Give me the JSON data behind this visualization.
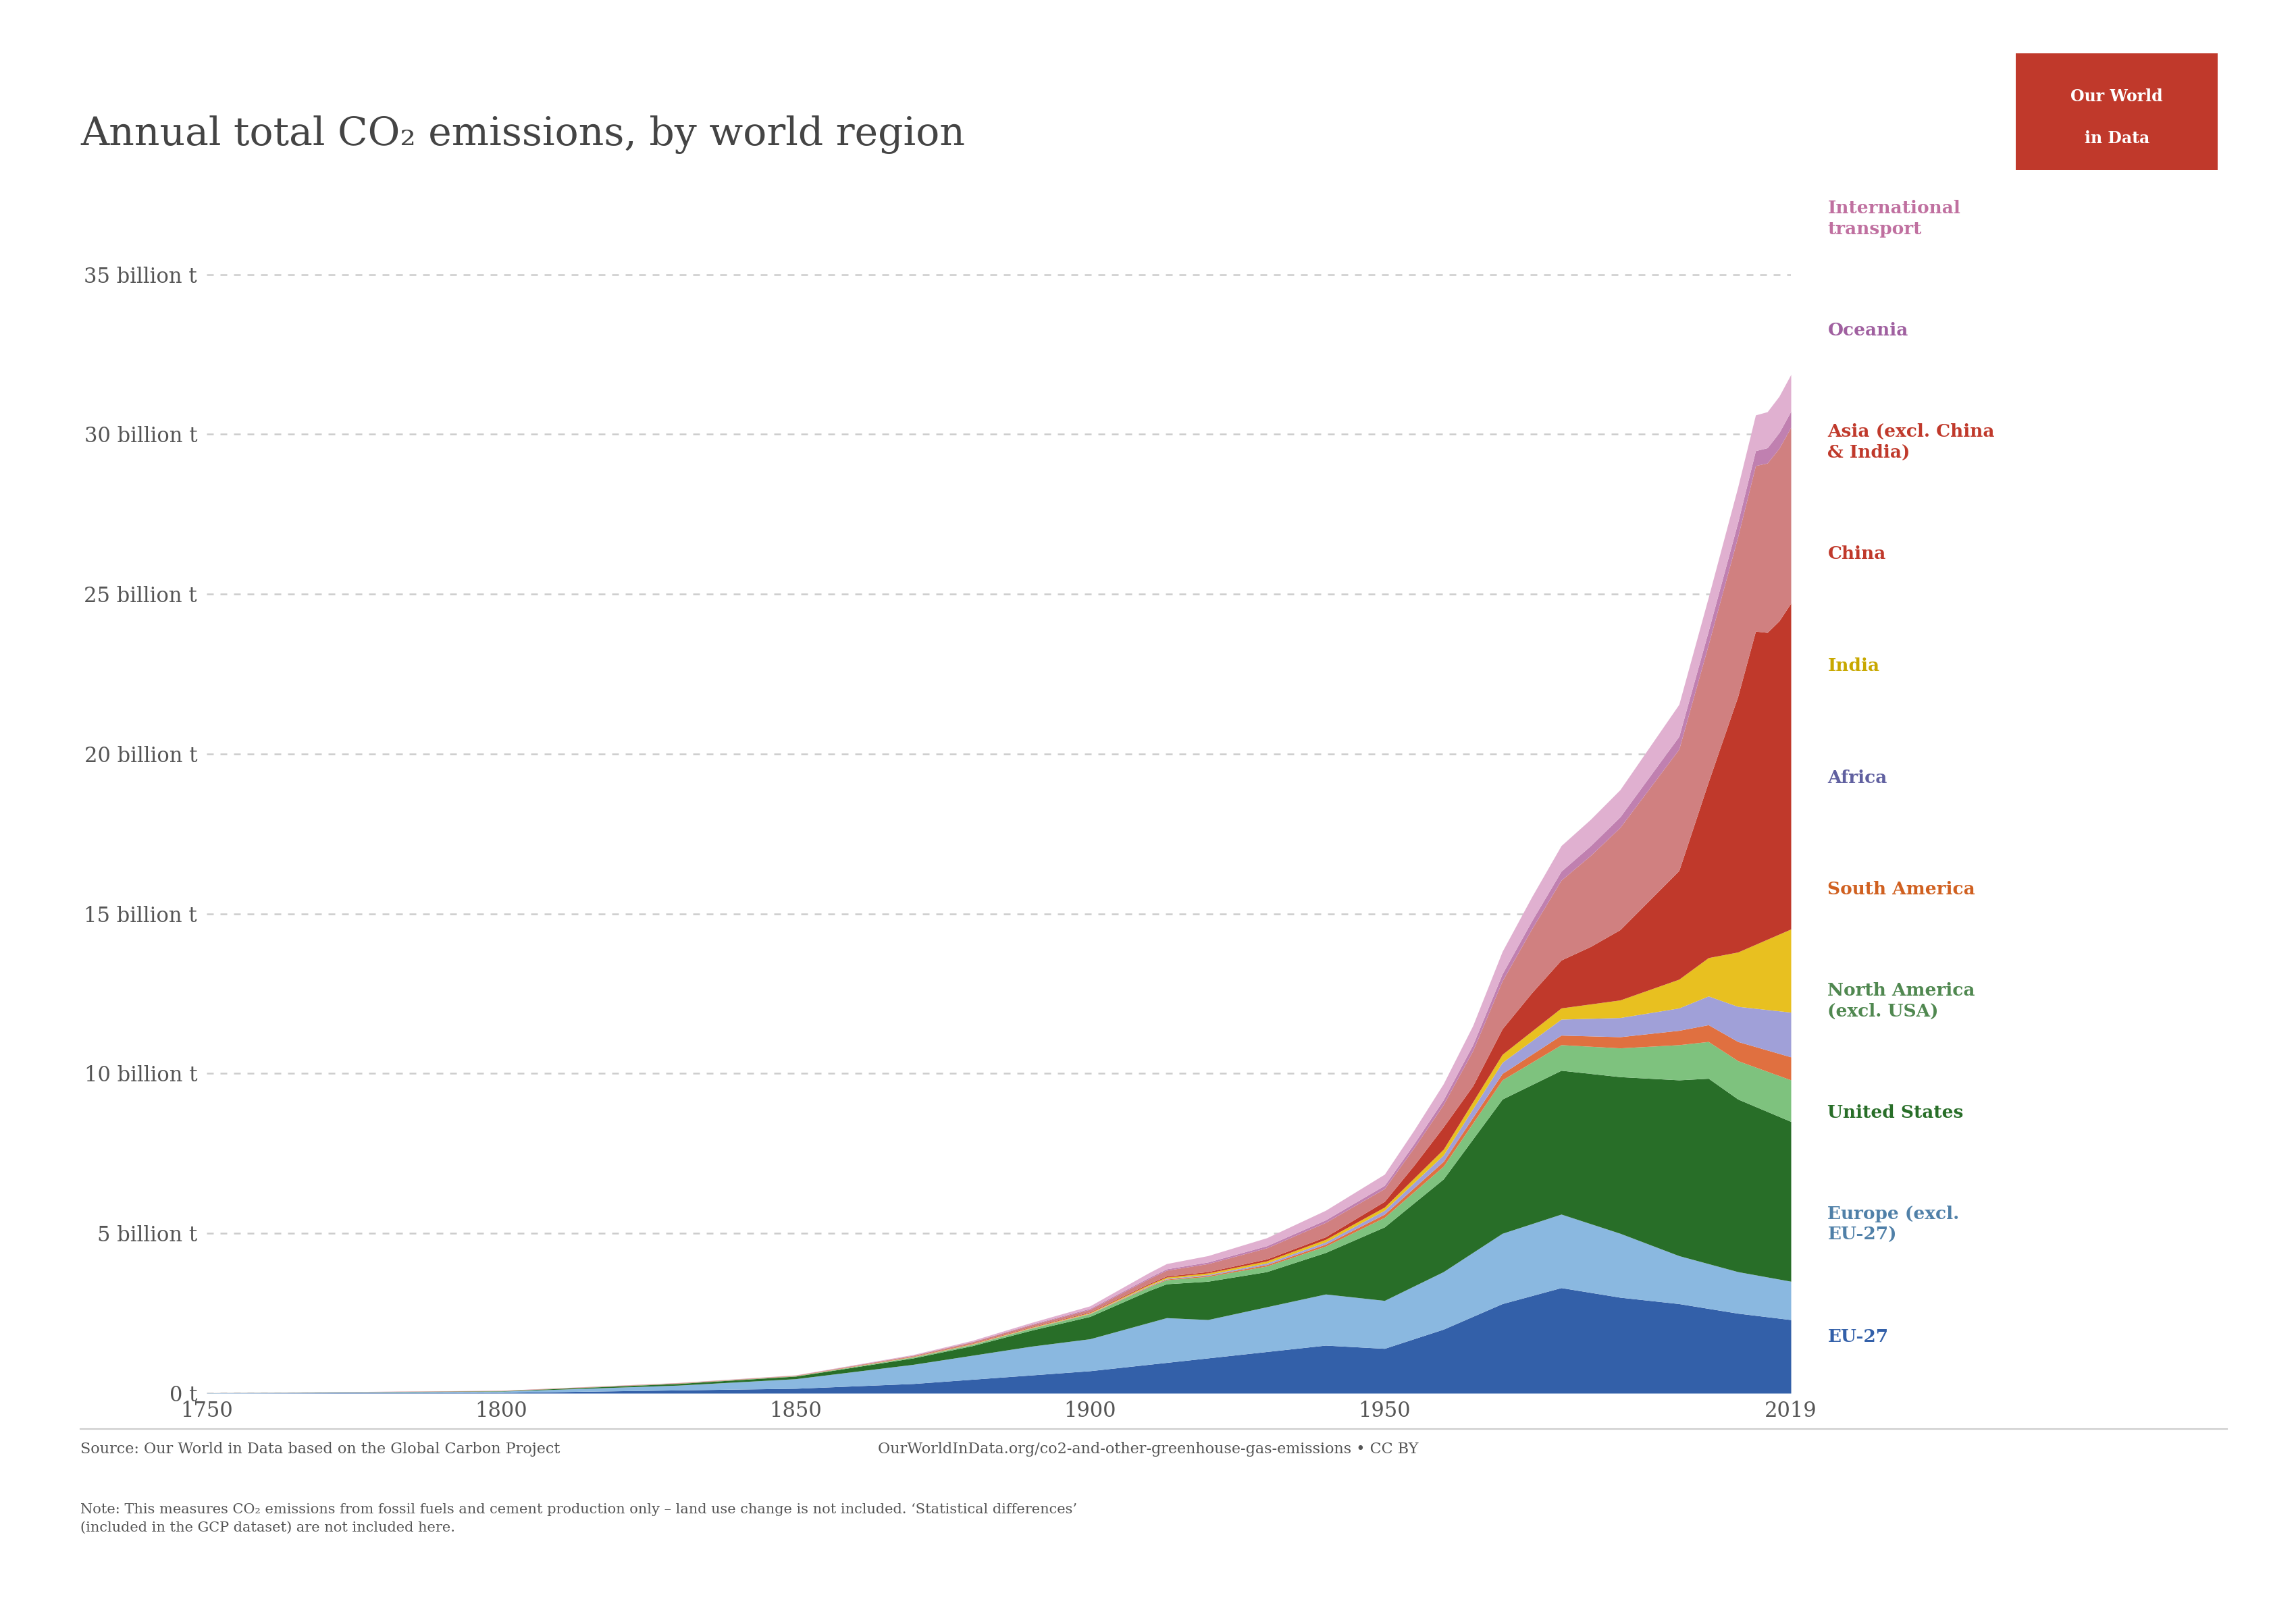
{
  "title": "Annual total CO₂ emissions, by world region",
  "background_color": "#ffffff",
  "plot_bg_color": "#ffffff",
  "year_start": 1750,
  "year_end": 2019,
  "ylim_max": 37000000000.0,
  "ytick_labels": [
    "0 t",
    "5 billion t",
    "10 billion t",
    "15 billion t",
    "20 billion t",
    "25 billion t",
    "30 billion t",
    "35 billion t"
  ],
  "xticks": [
    1750,
    1800,
    1850,
    1900,
    1950,
    2019
  ],
  "regions": [
    "EU-27",
    "Europe (excl.\nEU-27)",
    "United States",
    "North America\n(excl. USA)",
    "South America",
    "Africa",
    "India",
    "China",
    "Asia (excl. China\n& India)",
    "Oceania",
    "International\ntransport"
  ],
  "legend_labels": [
    "International\ntransport",
    "Oceania",
    "Asia (excl. China\n& India)",
    "China",
    "India",
    "Africa",
    "South America",
    "North America\n(excl. USA)",
    "United States",
    "Europe (excl.\nEU-27)",
    "EU-27"
  ],
  "colors": [
    "#3360a9",
    "#8ab8e0",
    "#286e28",
    "#7ec27e",
    "#e07040",
    "#a0a0d8",
    "#e8c020",
    "#c0392b",
    "#d08080",
    "#c080b0",
    "#e0b0d0"
  ],
  "legend_text_colors": [
    "#c070a0",
    "#a060a0",
    "#c0392b",
    "#c0392b",
    "#c8a800",
    "#6060a0",
    "#d06020",
    "#508850",
    "#286e28",
    "#5080a8",
    "#3360a9"
  ],
  "source_text": "Source: Our World in Data based on the Global Carbon Project",
  "url_text": "OurWorldInData.org/co2-and-other-greenhouse-gas-emissions • CC BY",
  "note_text": "Note: This measures CO₂ emissions from fossil fuels and cement production only – land use change is not included. ‘Statistical differences’\n(included in the GCP dataset) are not included here.",
  "logo_line1": "Our World",
  "logo_line2": "in Data",
  "logo_bg": "#c0392b"
}
